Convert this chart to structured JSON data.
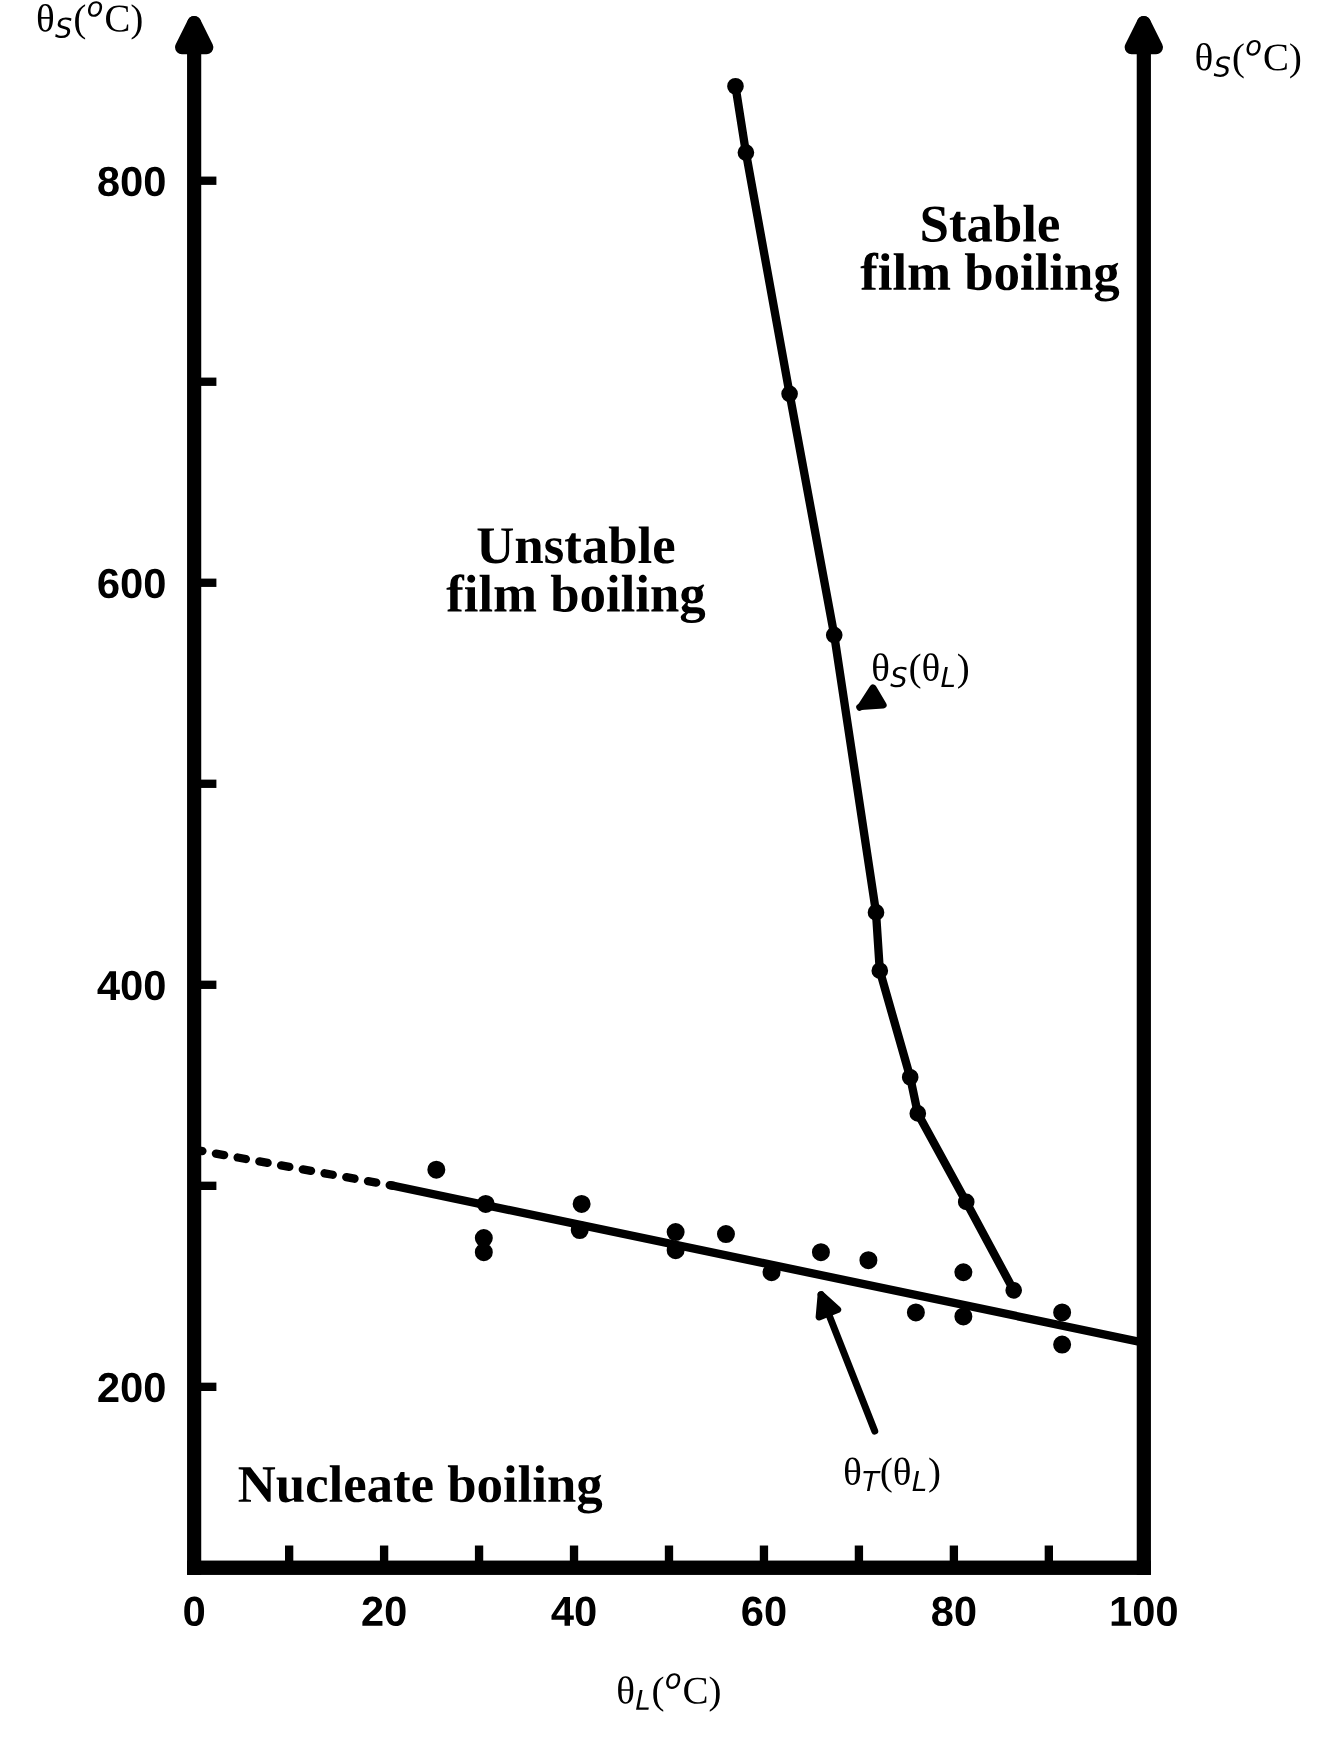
{
  "chart_data": {
    "type": "line",
    "xlabel": "θ$_{L}$($^{o}$C)",
    "ylabel": "θ$_{S}$($^{o}$C)",
    "y2label": "θ$_{S}$($^{o}$C)",
    "xlim": [
      0,
      100
    ],
    "ylim": [
      110,
      870
    ],
    "xticks": [
      0,
      {
        "value": 10,
        "label": null
      },
      20,
      {
        "value": 30,
        "label": null
      },
      40,
      {
        "value": 50,
        "label": null
      },
      60,
      {
        "value": 70,
        "label": null
      },
      80,
      {
        "value": 90,
        "label": null
      },
      100
    ],
    "yticks": [
      200,
      {
        "value": 300,
        "label": null
      },
      400,
      {
        "value": 500,
        "label": null
      },
      600,
      {
        "value": 700,
        "label": null
      },
      800
    ],
    "grid": false,
    "series": [
      {
        "color": "#000000",
        "line_style": "solid",
        "marker": "none",
        "x": [
          21,
          100
        ],
        "values": [
          300,
          222
        ]
      },
      {
        "color": "#000000",
        "line_style": "dotted",
        "marker": "none",
        "x": [
          0,
          21
        ],
        "values": [
          318,
          300
        ]
      },
      {
        "color": "#000000",
        "line_style": "solid",
        "marker": "circle",
        "x": [
          57,
          58.1,
          62.7,
          67.4,
          71.8,
          72.2,
          75.4,
          76.2,
          81.3,
          86.3
        ],
        "values": [
          847,
          814,
          694,
          574,
          436,
          407,
          354,
          336,
          292,
          248
        ]
      },
      {
        "type": "scatter",
        "color": "#000000",
        "marker": "circle",
        "x": [
          25.5,
          30.7,
          30.5,
          30.5,
          40.8,
          40.6,
          50.7,
          50.7,
          56,
          60.8,
          66,
          71,
          81,
          76,
          81,
          91.4,
          91.4
        ],
        "values": [
          308,
          291,
          274,
          267,
          291,
          278,
          277,
          268,
          276,
          257,
          267,
          263,
          257,
          237,
          235,
          237,
          221
        ]
      }
    ],
    "annotations": [
      "Stable\nfilm boiling",
      "Unstable\nfilm boiling",
      "Nucleate boiling",
      "θ$_{S}$(θ$_{L}$)",
      "θ$_{T}$(θ$_{L}$)"
    ]
  }
}
